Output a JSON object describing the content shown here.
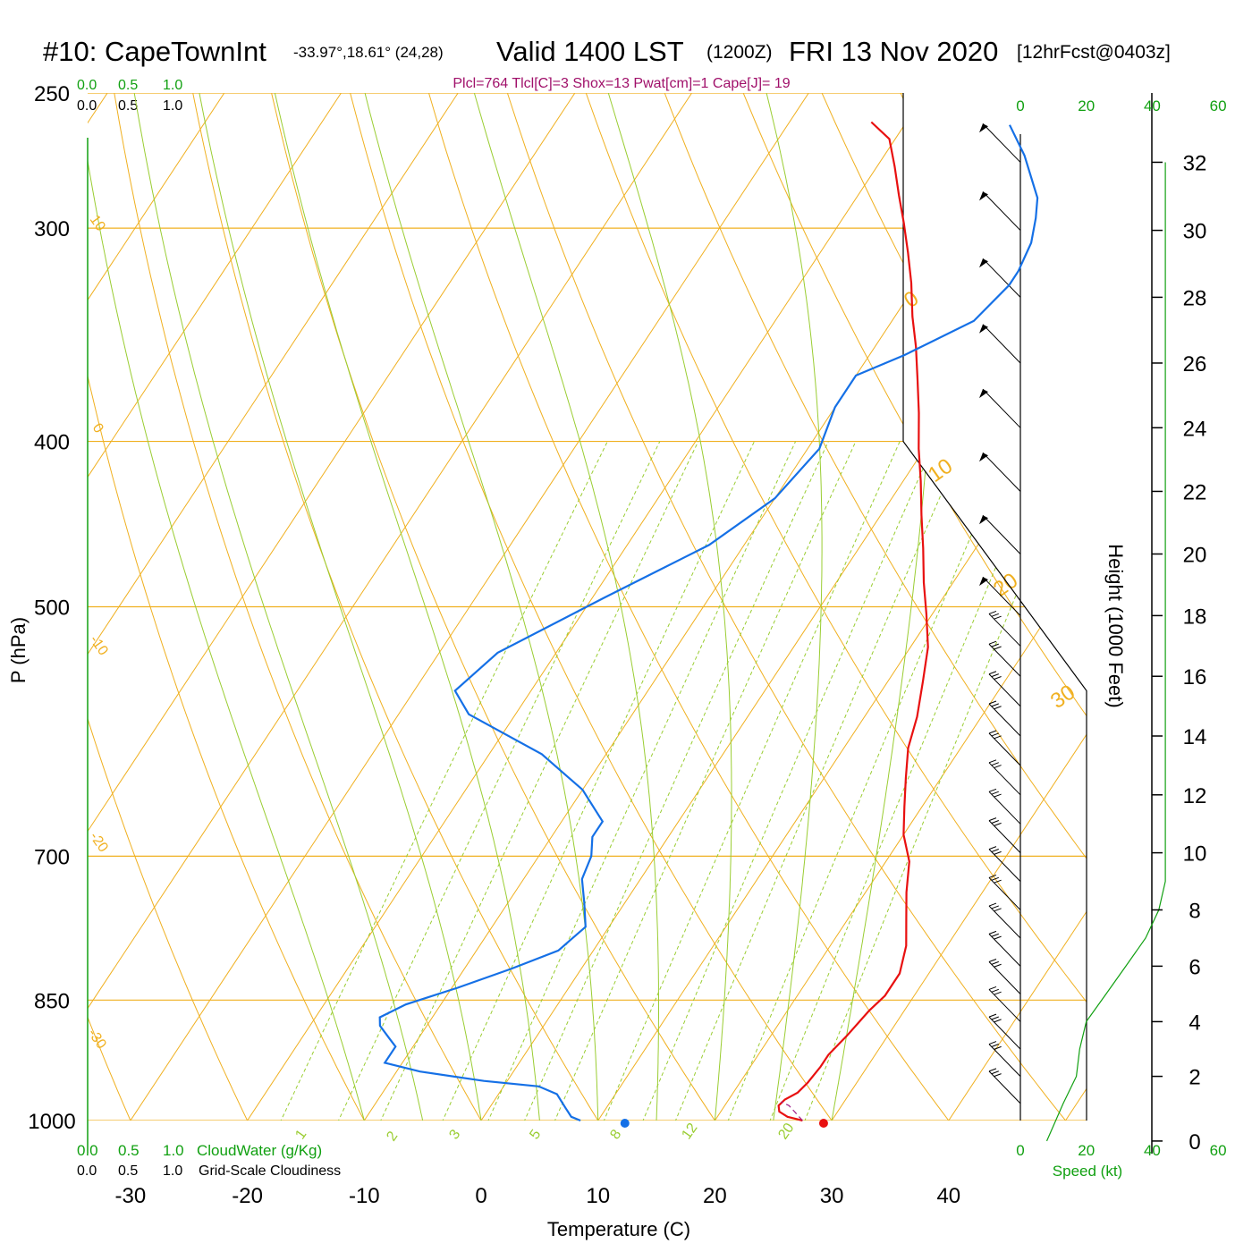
{
  "header": {
    "station": "#10: CapeTownInt",
    "coords": "-33.97°,18.61° (24,28)",
    "valid": "Valid 1400 LST",
    "zulu": "(1200Z)",
    "date": "FRI 13 Nov 2020",
    "forecast": "[12hrFcst@0403z]",
    "indices": "Plcl=764 Tlcl[C]=3 Shox=13 Pwat[cm]=1 Cape[J]= 19"
  },
  "colors": {
    "temperature": "#e81010",
    "dewpoint": "#1570e6",
    "isobar_isotherm": "#f0b020",
    "moist_adiabat": "#9acd32",
    "mixing_ratio": "#9acd32",
    "accent_green": "#11a011",
    "parcel": "#a0208a"
  },
  "legend": {
    "cloudwater_ticks": [
      "0.0",
      "0.5",
      "1.0"
    ],
    "cloudwater_label": "CloudWater (g/Kg)",
    "cloudiness_ticks": [
      "0.0",
      "0.5",
      "1.0"
    ],
    "cloudiness_label": "Grid-Scale Cloudiness",
    "speed_label": "Speed (kt)"
  },
  "chart_data": {
    "type": "line",
    "title": "#10: CapeTownInt Valid 1400 LST (1200Z) FRI 13 Nov 2020 [12hrFcst@0403z]",
    "xlabel": "Temperature (C)",
    "ylabel": "P (hPa)",
    "y2label": "Height (1000 Feet)",
    "x_ticks": [
      -30,
      -20,
      -10,
      0,
      10,
      20,
      30,
      40
    ],
    "p_ticks": [
      250,
      300,
      400,
      500,
      700,
      850,
      1000
    ],
    "height_ticks": [
      0,
      2,
      4,
      6,
      8,
      10,
      12,
      14,
      16,
      18,
      20,
      22,
      24,
      26,
      28,
      30,
      32
    ],
    "speed_ticks": [
      0,
      20,
      40,
      60
    ],
    "isotherm_labels": [
      10,
      0,
      -10,
      -20,
      -30,
      0,
      10,
      20,
      30
    ],
    "mixing_ratio_labels": [
      "1",
      "2",
      "3",
      "5",
      "8",
      "12",
      "20"
    ],
    "moist_adiabats": [
      -10,
      -5,
      0,
      5,
      10,
      15,
      20,
      25,
      30
    ],
    "series": [
      {
        "name": "Temperature",
        "points": [
          [
            27.5,
            1000
          ],
          [
            26,
            995
          ],
          [
            25,
            988
          ],
          [
            24.6,
            980
          ],
          [
            24.8,
            972
          ],
          [
            25.5,
            963
          ],
          [
            25.8,
            950
          ],
          [
            26,
            930
          ],
          [
            26,
            915
          ],
          [
            26.5,
            892
          ],
          [
            27,
            862
          ],
          [
            27.5,
            845
          ],
          [
            27.5,
            820
          ],
          [
            26.5,
            790
          ],
          [
            25,
            762
          ],
          [
            23.5,
            735
          ],
          [
            22,
            705
          ],
          [
            20,
            680
          ],
          [
            18.5,
            655
          ],
          [
            17,
            630
          ],
          [
            15.5,
            605
          ],
          [
            14.5,
            580
          ],
          [
            13,
            553
          ],
          [
            11.5,
            528
          ],
          [
            9.5,
            505
          ],
          [
            7.5,
            484
          ],
          [
            5.5,
            462
          ],
          [
            3.5,
            442
          ],
          [
            1.5,
            422
          ],
          [
            -0.5,
            404
          ],
          [
            -2.5,
            385
          ],
          [
            -4.5,
            368
          ],
          [
            -6.5,
            352
          ],
          [
            -8.5,
            338
          ],
          [
            -10.5,
            323
          ],
          [
            -12.5,
            310
          ],
          [
            -14.5,
            298
          ],
          [
            -16.5,
            287
          ],
          [
            -18.5,
            276
          ],
          [
            -20.5,
            266
          ],
          [
            -23,
            260
          ]
        ]
      },
      {
        "name": "Dewpoint",
        "points": [
          [
            8.5,
            1000
          ],
          [
            7.5,
            995
          ],
          [
            6.5,
            983
          ],
          [
            5,
            965
          ],
          [
            3,
            955
          ],
          [
            -2,
            948
          ],
          [
            -8,
            936
          ],
          [
            -11.5,
            925
          ],
          [
            -11.5,
            905
          ],
          [
            -12.5,
            895
          ],
          [
            -14,
            880
          ],
          [
            -14.5,
            870
          ],
          [
            -13,
            855
          ],
          [
            -9.5,
            836
          ],
          [
            -6,
            815
          ],
          [
            -3,
            795
          ],
          [
            -2,
            770
          ],
          [
            -3.5,
            745
          ],
          [
            -5,
            722
          ],
          [
            -5.5,
            700
          ],
          [
            -6.5,
            682
          ],
          [
            -6.5,
            668
          ],
          [
            -10,
            640
          ],
          [
            -15.5,
            610
          ],
          [
            -24,
            578
          ],
          [
            -26.5,
            560
          ],
          [
            -25,
            532
          ],
          [
            -19,
            494
          ],
          [
            -13,
            460
          ],
          [
            -10,
            432
          ],
          [
            -9,
            404
          ],
          [
            -10,
            382
          ],
          [
            -10,
            366
          ],
          [
            -7,
            356
          ],
          [
            -3,
            340
          ],
          [
            -2,
            324
          ],
          [
            -2,
            318
          ],
          [
            -2.5,
            306
          ],
          [
            -3.5,
            296
          ],
          [
            -4.5,
            288
          ],
          [
            -8,
            272
          ],
          [
            -11,
            261
          ]
        ]
      },
      {
        "name": "Parcel",
        "points": [
          [
            27.5,
            1000
          ],
          [
            26.5,
            990
          ],
          [
            25.5,
            980
          ],
          [
            24.6,
            975
          ]
        ]
      }
    ],
    "surface_points": [
      {
        "name": "dewpoint",
        "t": 12.3,
        "p": 1000
      },
      {
        "name": "temperature",
        "t": 29.3,
        "p": 1000
      }
    ],
    "height_profile_ft": [
      0,
      1,
      2,
      3,
      4,
      5,
      6,
      7,
      8,
      9,
      10,
      12,
      14,
      16,
      18,
      20,
      22,
      24,
      26,
      28,
      30,
      32
    ],
    "wind_speed_kt": [
      8,
      13,
      17,
      18,
      20,
      26,
      32,
      38,
      42,
      44,
      44,
      44,
      44,
      44,
      44,
      44,
      44,
      44,
      44,
      44,
      44,
      44
    ],
    "wind_barb_heights_kft": [
      1,
      2,
      3,
      4,
      5,
      6,
      7,
      8,
      9,
      10,
      11,
      12,
      13,
      14,
      15,
      16,
      17,
      18,
      20,
      22,
      24,
      26,
      28,
      30,
      32
    ]
  }
}
